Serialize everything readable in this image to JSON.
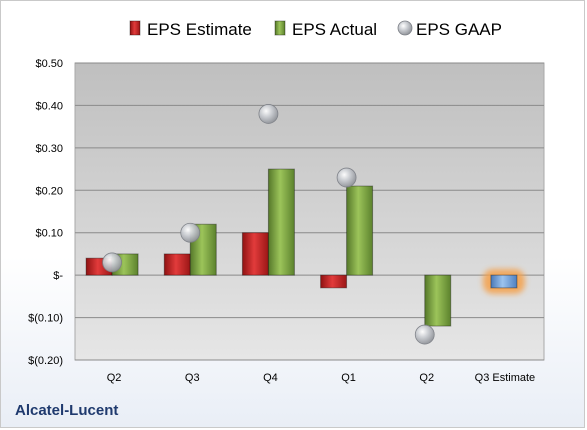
{
  "company_name": "Alcatel-Lucent",
  "colors": {
    "estimate": "#c0201f",
    "actual": "#7ba23f",
    "gaap": "#b9bdc4",
    "future_estimate": "#6fa0d8",
    "future_glow": "#f5a04a",
    "plot_top": "#bfbfbf",
    "plot_bottom": "#e6e6e6"
  },
  "chart_data": {
    "type": "bar",
    "categories": [
      "Q2",
      "Q3",
      "Q4",
      "Q1",
      "Q2",
      "Q3 Estimate"
    ],
    "series": [
      {
        "name": "EPS Estimate",
        "values": [
          0.04,
          0.05,
          0.1,
          -0.03,
          null,
          -0.03
        ]
      },
      {
        "name": "EPS Actual",
        "values": [
          0.05,
          0.12,
          0.25,
          0.21,
          -0.12,
          null
        ]
      },
      {
        "name": "EPS GAAP",
        "values": [
          0.03,
          0.1,
          0.38,
          0.23,
          -0.14,
          null
        ]
      }
    ],
    "ylim": [
      -0.2,
      0.5
    ],
    "yticks": [
      {
        "value": 0.5,
        "label": "$0.50"
      },
      {
        "value": 0.4,
        "label": "$0.40"
      },
      {
        "value": 0.3,
        "label": "$0.30"
      },
      {
        "value": 0.2,
        "label": "$0.20"
      },
      {
        "value": 0.1,
        "label": "$0.10"
      },
      {
        "value": 0.0,
        "label": "$-"
      },
      {
        "value": -0.1,
        "label": "$(0.10)"
      },
      {
        "value": -0.2,
        "label": "$(0.20)"
      }
    ],
    "grid": true,
    "legend_position": "top"
  }
}
